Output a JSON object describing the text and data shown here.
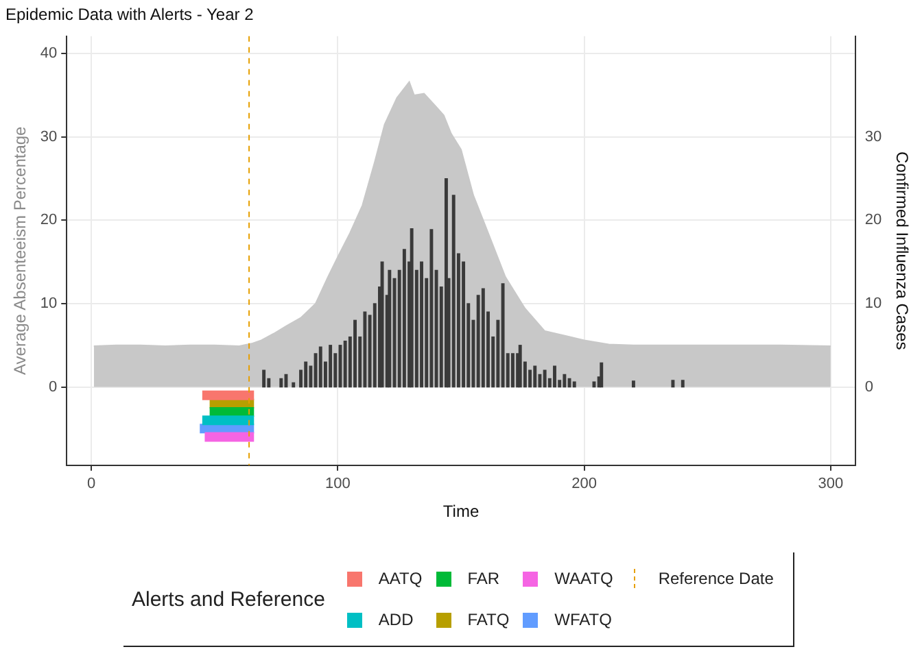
{
  "chart_data": {
    "type": "bar",
    "title": "Epidemic Data with Alerts - Year 2",
    "xlabel": "Time",
    "ylabel": "Average Absenteeism Percentage",
    "y2label": "Confirmed Influenza Cases",
    "legend_title": "Alerts and Reference",
    "xlim": [
      -10,
      310
    ],
    "xticks": [
      0,
      100,
      200,
      300
    ],
    "ylim": [
      -9.4,
      42.1
    ],
    "yticks": [
      0,
      10,
      20,
      30,
      40
    ],
    "y2lim": [
      -9.4,
      42.1
    ],
    "y2ticks": [
      0,
      10,
      20,
      30
    ],
    "grid": true,
    "legend": "bottom",
    "series": [
      {
        "type": "area",
        "color": "#c8c8c8",
        "x": [
          1,
          10,
          20,
          30,
          40,
          50,
          60,
          65,
          69,
          74,
          79,
          85,
          91,
          96,
          100,
          105,
          110,
          115,
          119,
          124,
          129,
          131,
          135,
          140,
          143,
          146,
          150,
          155,
          161,
          168,
          176,
          184,
          193,
          200,
          210,
          220,
          240,
          260,
          280,
          300
        ],
        "values": [
          4.9,
          5.0,
          5.0,
          4.9,
          5.0,
          5.0,
          4.9,
          5.2,
          5.6,
          6.4,
          7.3,
          8.3,
          10,
          13.2,
          15.6,
          18.5,
          21.8,
          27,
          31.5,
          34.7,
          36.6,
          35,
          35.2,
          33.6,
          32.6,
          30.4,
          28.5,
          23,
          18.5,
          13.2,
          9.4,
          6.7,
          6.1,
          5.6,
          5.1,
          5.0,
          5.0,
          5.0,
          5.0,
          4.9
        ]
      },
      {
        "axis": "y2",
        "color": "#3a3a3a",
        "x": [
          70,
          72,
          77,
          79,
          82,
          85,
          87,
          89,
          91,
          93,
          95,
          97,
          99,
          101,
          103,
          105,
          107,
          109,
          111,
          113,
          115,
          117,
          118,
          120,
          121,
          123,
          125,
          127,
          129,
          130,
          132,
          134,
          136,
          138,
          140,
          142,
          144,
          145,
          147,
          149,
          151,
          153,
          155,
          157,
          159,
          161,
          163,
          165,
          167,
          169,
          171,
          173,
          174,
          176,
          178,
          180,
          182,
          184,
          186,
          188,
          190,
          192,
          194,
          196,
          204,
          206,
          207,
          220,
          236,
          240
        ],
        "values": [
          2,
          1,
          1,
          1.5,
          0.5,
          2,
          3,
          2.5,
          4,
          4.8,
          3,
          5,
          4,
          5,
          5.5,
          6,
          8,
          6,
          9,
          8.6,
          10,
          12,
          15,
          11,
          14,
          13,
          14,
          16.5,
          15,
          19,
          14,
          15,
          13,
          18.9,
          14,
          12,
          25,
          13,
          23,
          16,
          15,
          10,
          8,
          11,
          11.8,
          9,
          6,
          8,
          12.4,
          4,
          4,
          4,
          5,
          3,
          2,
          2.5,
          1.5,
          2,
          1,
          2.5,
          0.8,
          1.5,
          1,
          0.6,
          0.6,
          1.2,
          2.9,
          0.7,
          0.8,
          0.8
        ]
      },
      {
        "type": "line",
        "name": "AATQ",
        "color": "#f8766d",
        "x": [
          45,
          46,
          47,
          48,
          49,
          50,
          51,
          52,
          53,
          54,
          55,
          56,
          57,
          58,
          59,
          60,
          61,
          62,
          63,
          64,
          65,
          66
        ],
        "values": [
          -1,
          -1,
          -1,
          -1,
          -1,
          -1,
          -1,
          -1,
          -1,
          -1,
          -1,
          -1,
          -1,
          -1,
          -1,
          -1,
          -1,
          -1,
          -1,
          -1,
          -1,
          -1
        ]
      },
      {
        "type": "line",
        "name": "ADD",
        "color": "#00bfc4",
        "x": [
          45,
          46,
          47,
          48,
          49,
          50,
          51,
          52,
          53,
          54,
          55,
          56,
          57,
          58,
          59,
          60,
          61,
          62,
          63,
          64,
          65,
          66
        ],
        "values": [
          -4,
          -4,
          -4,
          -4,
          -4,
          -4,
          -4,
          -4,
          -4,
          -4,
          -4,
          -4,
          -4,
          -4,
          -4,
          -4,
          -4,
          -4,
          -4,
          -4,
          -4,
          -4
        ]
      },
      {
        "type": "line",
        "name": "FAR",
        "color": "#00ba38",
        "x": [
          48,
          49,
          50,
          51,
          52,
          53,
          54,
          55,
          56,
          57,
          58,
          59,
          60,
          61,
          62,
          63,
          64,
          65,
          66
        ],
        "values": [
          -3,
          -3,
          -3,
          -3,
          -3,
          -3,
          -3,
          -3,
          -3,
          -3,
          -3,
          -3,
          -3,
          -3,
          -3,
          -3,
          -3,
          -3,
          -3
        ]
      },
      {
        "type": "line",
        "name": "FATQ",
        "color": "#b79f00",
        "x": [
          48,
          49,
          50,
          51,
          52,
          53,
          54,
          55,
          56,
          57,
          58,
          59,
          60,
          61,
          62,
          63,
          64,
          65,
          66
        ],
        "values": [
          -2,
          -2,
          -2,
          -2,
          -2,
          -2,
          -2,
          -2,
          -2,
          -2,
          -2,
          -2,
          -2,
          -2,
          -2,
          -2,
          -2,
          -2,
          -2
        ]
      },
      {
        "type": "line",
        "name": "WAATQ",
        "color": "#f564e3",
        "x": [
          46,
          47,
          48,
          49,
          50,
          51,
          52,
          53,
          54,
          55,
          56,
          57,
          58,
          59,
          60,
          61,
          62,
          63,
          64,
          65,
          66
        ],
        "values": [
          -6,
          -6,
          -6,
          -6,
          -6,
          -6,
          -6,
          -6,
          -6,
          -6,
          -6,
          -6,
          -6,
          -6,
          -6,
          -6,
          -6,
          -6,
          -6,
          -6,
          -6
        ]
      },
      {
        "type": "line",
        "name": "WFATQ",
        "color": "#619cff",
        "x": [
          44,
          45,
          46,
          47,
          48,
          49,
          50,
          51,
          52,
          53,
          54,
          55,
          56,
          57,
          58,
          59,
          60,
          61,
          62,
          63,
          64,
          65,
          66
        ],
        "values": [
          -5,
          -5,
          -5,
          -5,
          -5,
          -5,
          -5,
          -5,
          -5,
          -5,
          -5,
          -5,
          -5,
          -5,
          -5,
          -5,
          -5,
          -5,
          -5,
          -5,
          -5,
          -5,
          -5
        ]
      }
    ],
    "ref_lines": [
      {
        "axis": "x",
        "value": 64,
        "label": "Reference Date",
        "color": "#e69f00",
        "line_style": "dashed"
      }
    ]
  }
}
